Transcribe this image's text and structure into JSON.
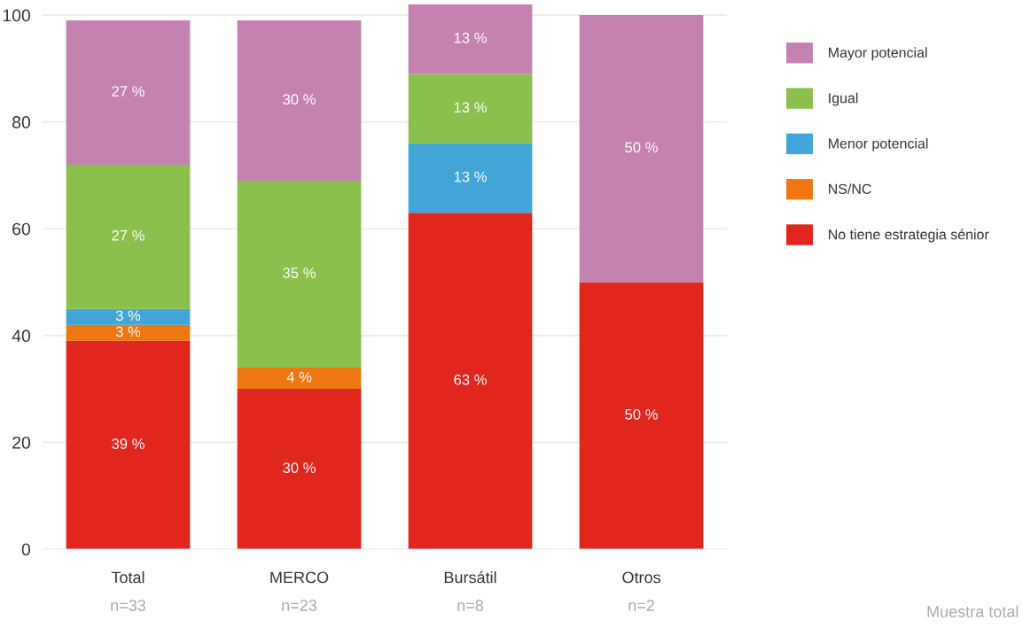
{
  "chart_data": {
    "type": "bar",
    "stacked": true,
    "categories": [
      "Total\nn=33",
      "MERCO\nn=23",
      "Bursátil\nn=8",
      "Otros\nn=2"
    ],
    "series": [
      {
        "name": "No tiene estrategia sénior",
        "color": "#e1261e",
        "values": [
          39,
          30,
          63,
          50
        ],
        "value_labels": [
          "39 %",
          "30 %",
          "63 %",
          "50 %"
        ]
      },
      {
        "name": "NS/NC",
        "color": "#ee7712",
        "values": [
          3,
          4,
          null,
          null
        ],
        "value_labels": [
          "3 %",
          "4 %",
          null,
          null
        ]
      },
      {
        "name": "Menor potencial",
        "color": "#42a5d8",
        "values": [
          3,
          null,
          13,
          null
        ],
        "value_labels": [
          "3 %",
          null,
          "13 %",
          null
        ]
      },
      {
        "name": "Igual",
        "color": "#8bc04c",
        "values": [
          27,
          35,
          13,
          null
        ],
        "value_labels": [
          "27 %",
          "35 %",
          "13 %",
          null
        ]
      },
      {
        "name": "Mayor potencial",
        "color": "#c482b0",
        "values": [
          27,
          30,
          13,
          50
        ],
        "value_labels": [
          "27 %",
          "30 %",
          "13 %",
          "50 %"
        ]
      }
    ],
    "ylim": [
      0,
      102
    ],
    "yticks": [
      0,
      20,
      40,
      60,
      80,
      100
    ],
    "grid": "y",
    "legend": "right",
    "annotations": [
      "Muestra total"
    ]
  }
}
